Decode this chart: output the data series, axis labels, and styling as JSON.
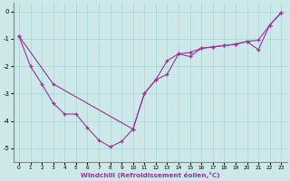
{
  "xlabel": "Windchill (Refroidissement éolien,°C)",
  "background_color": "#cce8e8",
  "line_color": "#993399",
  "xlim": [
    -0.5,
    23.5
  ],
  "ylim": [
    -5.5,
    0.3
  ],
  "xticks": [
    0,
    1,
    2,
    3,
    4,
    5,
    6,
    7,
    8,
    9,
    10,
    11,
    12,
    13,
    14,
    15,
    16,
    17,
    18,
    19,
    20,
    21,
    22,
    23
  ],
  "yticks": [
    0,
    -1,
    -2,
    -3,
    -4,
    -5
  ],
  "series1_x": [
    0,
    1,
    2,
    3,
    4,
    5,
    6,
    7,
    8,
    9,
    10,
    11,
    12,
    13,
    14,
    15,
    16,
    17,
    18,
    19,
    20,
    21,
    22,
    23
  ],
  "series1_y": [
    -0.9,
    -2.0,
    -2.65,
    -3.35,
    -3.75,
    -3.75,
    -4.25,
    -4.7,
    -4.95,
    -4.75,
    -4.3,
    -3.0,
    -2.5,
    -1.8,
    -1.55,
    -1.5,
    -1.35,
    -1.3,
    -1.25,
    -1.2,
    -1.1,
    -1.05,
    -0.5,
    -0.05
  ],
  "series2_x": [
    0,
    3,
    10,
    11,
    12,
    13,
    14,
    15,
    16,
    17,
    18,
    19,
    20,
    21,
    22,
    23
  ],
  "series2_y": [
    -0.9,
    -2.65,
    -4.3,
    -3.0,
    -2.5,
    -2.3,
    -1.55,
    -1.65,
    -1.35,
    -1.3,
    -1.25,
    -1.2,
    -1.1,
    -1.4,
    -0.5,
    -0.05
  ]
}
